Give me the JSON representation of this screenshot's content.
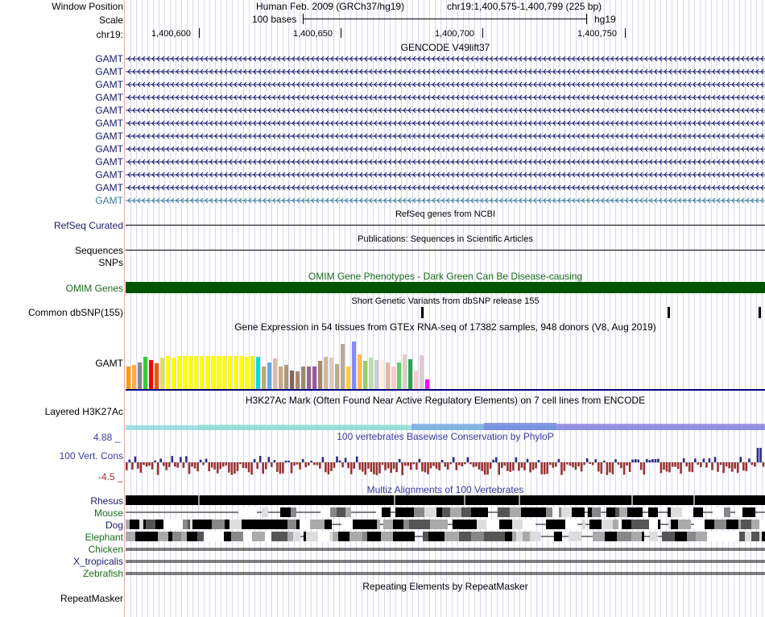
{
  "header": {
    "window_position_label": "Window Position",
    "assembly_text": "Human Feb. 2009 (GRCh37/hg19)",
    "position_text": "chr19:1,400,575-1,400,799 (225 bp)",
    "scale_label": "Scale",
    "scale_bar_text": "100 bases",
    "scale_db": "hg19",
    "chrom_label": "chr19:",
    "ruler_ticks": [
      "1,400,600",
      "1,400,650",
      "1,400,700",
      "1,400,750"
    ]
  },
  "gencode": {
    "title": "GENCODE V49lift37",
    "transcripts": [
      "GAMT",
      "GAMT",
      "GAMT",
      "GAMT",
      "GAMT",
      "GAMT",
      "GAMT",
      "GAMT",
      "GAMT",
      "GAMT",
      "GAMT",
      "GAMT"
    ]
  },
  "refseq": {
    "label": "RefSeq Curated",
    "title": "RefSeq genes from NCBI"
  },
  "publications": {
    "label": "Sequences",
    "title": "Publications: Sequences in Scientific Articles"
  },
  "snps": {
    "label": "SNPs"
  },
  "omim": {
    "label": "OMIM Genes",
    "title": "OMIM Gene Phenotypes - Dark Green Can Be Disease-causing",
    "color": "#005500"
  },
  "dbsnp": {
    "label": "Common dbSNP(155)",
    "title": "Short Genetic Variants from dbSNP release 155"
  },
  "gtex": {
    "title": "Gene Expression in 54 tissues from GTEx RNA-seq of 17382 samples, 948 donors (V8, Aug 2019)",
    "gene_label": "GAMT",
    "values": [
      0.62,
      0.66,
      0.74,
      0.88,
      0.79,
      0.72,
      0.86,
      0.9,
      0.86,
      0.9,
      0.9,
      0.9,
      0.9,
      0.9,
      0.9,
      0.9,
      0.9,
      0.9,
      0.9,
      0.9,
      0.9,
      0.88,
      0.92,
      0.88,
      0.62,
      0.74,
      0.84,
      0.62,
      0.66,
      0.52,
      0.48,
      0.62,
      0.62,
      0.62,
      0.78,
      0.88,
      0.86,
      0.68,
      1.25,
      0.62,
      1.32,
      0.96,
      0.78,
      0.86,
      0.8,
      0.8,
      0.74,
      0.62,
      0.74,
      0.96,
      0.82,
      0.5,
      0.94,
      0.26
    ],
    "colors": [
      "#ff9900",
      "#ffaa44",
      "#888888",
      "#33cc33",
      "#ff0000",
      "#ee5500",
      "#dddd66",
      "#ffff00",
      "#ffff00",
      "#ffff00",
      "#ffff00",
      "#ffff00",
      "#ffff00",
      "#ffff00",
      "#ffff00",
      "#ffff00",
      "#ffff00",
      "#ffff00",
      "#ffff00",
      "#ffff00",
      "#ffff00",
      "#ffff00",
      "#eeee22",
      "#00dddd",
      "#bbaa77",
      "#66aadd",
      "#ddbbaa",
      "#ccaa88",
      "#aa9977",
      "#886655",
      "#aa8866",
      "#998877",
      "#996688",
      "#9955aa",
      "#aa8866",
      "#ccbb99",
      "#ddccbb",
      "#bbaa88",
      "#bbaa99",
      "#ffcc33",
      "#8888ff",
      "#ffbb55",
      "#99cc66",
      "#bbddaa",
      "#cccccc",
      "#ffeedd",
      "#ddbb99",
      "#ffccbb",
      "#66cc66",
      "#ddcccc",
      "#22aa44",
      "#ffcccc",
      "#ddcccc",
      "#ff00ff"
    ]
  },
  "h3k27ac": {
    "label": "Layered H3K27Ac",
    "title": "H3K27Ac Mark (Often Found Near Active Regulatory Elements) on 7 cell lines from ENCODE"
  },
  "conservation": {
    "label": "100 Vert. Cons",
    "title": "100 vertebrates Basewise Conservation by PhyloP",
    "max_label": "4.88 _",
    "min_label": "-4.5 _",
    "ylim": [
      -4.5,
      4.88
    ],
    "pos_color": "#2a2a88",
    "neg_color": "#993333"
  },
  "multiz": {
    "title": "Multiz Alignments of 100 Vertebrates",
    "species": [
      {
        "name": "Rhesus",
        "color": "#1a1a6e"
      },
      {
        "name": "Mouse",
        "color": "#1a6b1a"
      },
      {
        "name": "Dog",
        "color": "#1a1a6e"
      },
      {
        "name": "Elephant",
        "color": "#1a6b1a"
      },
      {
        "name": "Chicken",
        "color": "#1a6b1a"
      },
      {
        "name": "X_tropicalis",
        "color": "#1a1a6e"
      },
      {
        "name": "Zebrafish",
        "color": "#1a6b1a"
      }
    ]
  },
  "repeatmasker": {
    "label": "RepeatMasker",
    "title": "Repeating Elements by RepeatMasker"
  }
}
